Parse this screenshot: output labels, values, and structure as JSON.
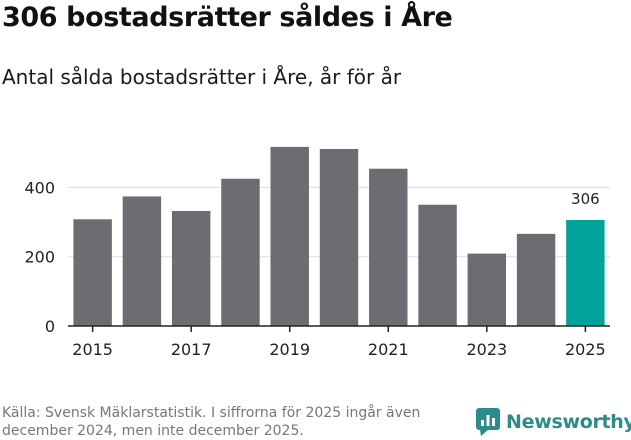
{
  "header": {
    "title": "306 bostadsrätter såldes i Åre",
    "subtitle": "Antal sålda bostadsrätter i Åre, år för år"
  },
  "chart_data": {
    "type": "bar",
    "categories": [
      "2015",
      "2016",
      "2017",
      "2018",
      "2019",
      "2020",
      "2021",
      "2022",
      "2023",
      "2024",
      "2025"
    ],
    "values": [
      308,
      374,
      332,
      425,
      517,
      511,
      454,
      350,
      209,
      266,
      306
    ],
    "x_tick_labels": [
      "2015",
      "2017",
      "2019",
      "2021",
      "2023",
      "2025"
    ],
    "y_ticks": [
      0,
      200,
      400
    ],
    "ylim": [
      0,
      560
    ],
    "highlight_index": 10,
    "highlight_label": "306",
    "bar_color": "#6d6c72",
    "highlight_color": "#00a399",
    "grid": true
  },
  "footer": {
    "source": "Källa: Svensk Mäklarstatistik. I siffrorna för 2025 ingår även december 2024, men inte december 2025."
  },
  "logo": {
    "name": "Newsworthy",
    "color": "#2e8b8b"
  }
}
